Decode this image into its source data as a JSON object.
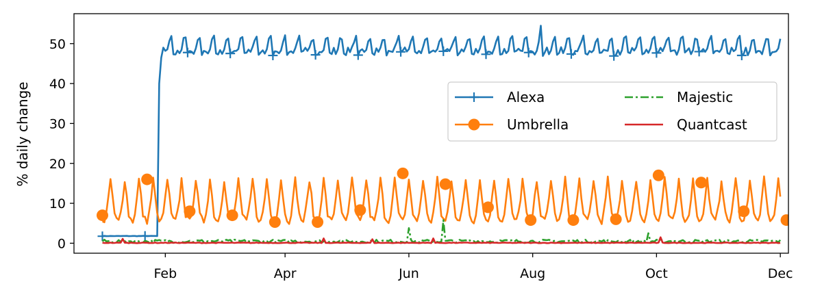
{
  "chart_data": {
    "type": "line",
    "title": "",
    "xlabel": "",
    "ylabel": "% daily change",
    "x_start": "2017-01-01",
    "x_end": "2017-12-01",
    "xlim": [
      "2016-12-18",
      "2017-12-05"
    ],
    "ylim": [
      -2.5,
      57.5
    ],
    "grid": false,
    "legend_position": "center-right",
    "legend_columns": 2,
    "x_ticks": [
      {
        "label": "Feb",
        "date": "2017-02-01"
      },
      {
        "label": "Apr",
        "date": "2017-04-01"
      },
      {
        "label": "Jun",
        "date": "2017-06-01"
      },
      {
        "label": "Aug",
        "date": "2017-08-01"
      },
      {
        "label": "Oct",
        "date": "2017-10-01"
      },
      {
        "label": "Dec",
        "date": "2017-12-01"
      }
    ],
    "y_ticks": [
      0,
      10,
      20,
      30,
      40,
      50
    ],
    "series": [
      {
        "name": "Alexa",
        "color": "#1f77b4",
        "marker": "plus",
        "style": "solid",
        "baseline_before_jump": 1.8,
        "jump_date": "2017-01-29",
        "weekly_high": 51.5,
        "weekly_low": 47.5,
        "spikes": [
          {
            "date": "2017-08-05",
            "value": 54.5
          }
        ]
      },
      {
        "name": "Umbrella",
        "color": "#ff7f0e",
        "marker": "circle",
        "style": "solid",
        "weekly_high": 16.0,
        "weekly_low": 5.5,
        "marker_points": [
          {
            "date": "2017-01-01",
            "value": 7.0
          },
          {
            "date": "2017-01-23",
            "value": 16.0
          },
          {
            "date": "2017-02-13",
            "value": 8.0
          },
          {
            "date": "2017-03-06",
            "value": 7.0
          },
          {
            "date": "2017-03-27",
            "value": 5.3
          },
          {
            "date": "2017-04-17",
            "value": 5.3
          },
          {
            "date": "2017-05-08",
            "value": 8.3
          },
          {
            "date": "2017-05-29",
            "value": 17.5
          },
          {
            "date": "2017-06-19",
            "value": 14.8
          },
          {
            "date": "2017-07-10",
            "value": 9.0
          },
          {
            "date": "2017-07-31",
            "value": 5.8
          },
          {
            "date": "2017-08-21",
            "value": 5.8
          },
          {
            "date": "2017-09-11",
            "value": 6.0
          },
          {
            "date": "2017-10-02",
            "value": 17.0
          },
          {
            "date": "2017-10-23",
            "value": 15.2
          },
          {
            "date": "2017-11-13",
            "value": 8.0
          },
          {
            "date": "2017-12-04",
            "value": 5.8
          }
        ]
      },
      {
        "name": "Majestic",
        "color": "#2ca02c",
        "marker": "none",
        "style": "dashdot",
        "typical_value": 0.5,
        "spikes": [
          {
            "date": "2017-06-01",
            "value": 3.8
          },
          {
            "date": "2017-06-18",
            "value": 5.8
          },
          {
            "date": "2017-09-27",
            "value": 2.5
          }
        ]
      },
      {
        "name": "Quantcast",
        "color": "#d62728",
        "marker": "none",
        "style": "solid",
        "typical_value": 0.1,
        "spikes": [
          {
            "date": "2017-01-11",
            "value": 1.1
          },
          {
            "date": "2017-04-20",
            "value": 1.2
          },
          {
            "date": "2017-05-14",
            "value": 1.0
          },
          {
            "date": "2017-06-13",
            "value": 1.2
          },
          {
            "date": "2017-10-03",
            "value": 1.5
          }
        ]
      }
    ]
  }
}
